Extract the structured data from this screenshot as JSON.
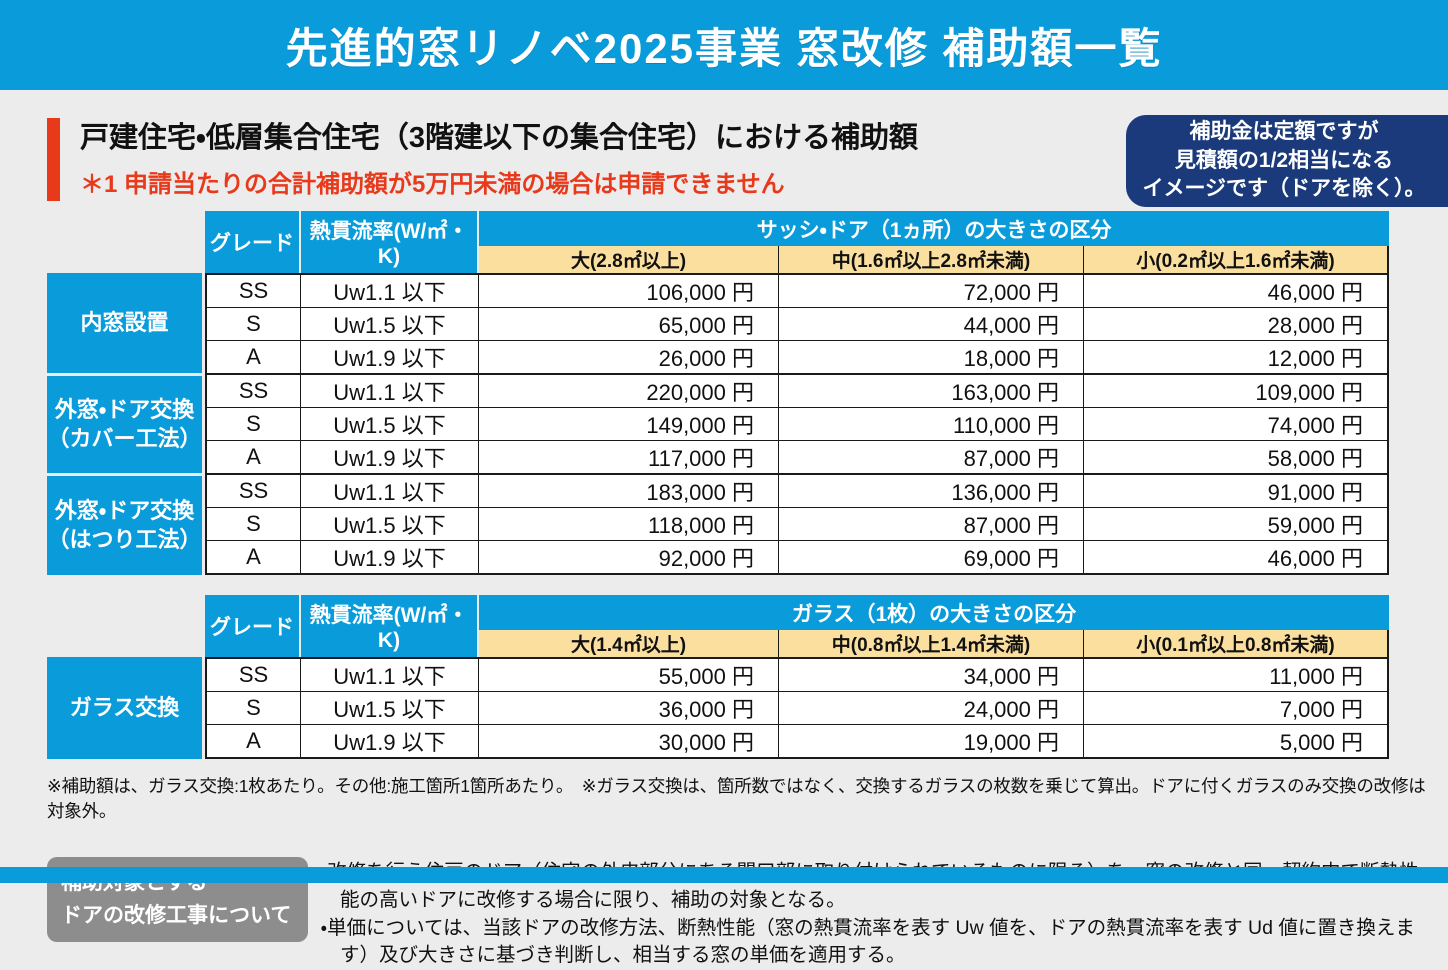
{
  "page_title": "先進的窓リノベ2025事業 窓改修 補助額一覧",
  "section": {
    "heading": "戸建住宅・低層集合住宅（3階建以下の集合住宅）における補助額",
    "note": "＊1 申請当たりの合計補助額が5万円未満の場合は申請できません",
    "badge": "補助金は定額ですが\n見積額の1/2相当になる\nイメージです（ドアを除く）。"
  },
  "colors": {
    "cyan": "#0A9CDA",
    "navy": "#1A3A7C",
    "tan": "#FBDF9E",
    "red": "#E8391B",
    "gray_box": "#8D8D8D"
  },
  "tables": {
    "t1": {
      "col_grade": "グレード",
      "col_uw": "熱貫流率(W/㎡・K)",
      "span_header": "サッシ・ドア（1ヵ所）の大きさの区分",
      "sizes": [
        "大(2.8㎡以上)",
        "中(1.6㎡以上2.8㎡未満)",
        "小(0.2㎡以上1.6㎡未満)"
      ],
      "groups": [
        {
          "label": "内窓設置",
          "rows": [
            {
              "grade": "SS",
              "uw": "Uw1.1 以下",
              "large": "106,000 円",
              "mid": "72,000 円",
              "small": "46,000 円"
            },
            {
              "grade": "S",
              "uw": "Uw1.5 以下",
              "large": "65,000 円",
              "mid": "44,000 円",
              "small": "28,000 円"
            },
            {
              "grade": "A",
              "uw": "Uw1.9 以下",
              "large": "26,000 円",
              "mid": "18,000 円",
              "small": "12,000 円"
            }
          ]
        },
        {
          "label": "外窓・ドア交換\n（カバー工法）",
          "rows": [
            {
              "grade": "SS",
              "uw": "Uw1.1 以下",
              "large": "220,000 円",
              "mid": "163,000 円",
              "small": "109,000 円"
            },
            {
              "grade": "S",
              "uw": "Uw1.5 以下",
              "large": "149,000 円",
              "mid": "110,000 円",
              "small": "74,000 円"
            },
            {
              "grade": "A",
              "uw": "Uw1.9 以下",
              "large": "117,000 円",
              "mid": "87,000 円",
              "small": "58,000 円"
            }
          ]
        },
        {
          "label": "外窓・ドア交換\n（はつり工法）",
          "rows": [
            {
              "grade": "SS",
              "uw": "Uw1.1 以下",
              "large": "183,000 円",
              "mid": "136,000 円",
              "small": "91,000 円"
            },
            {
              "grade": "S",
              "uw": "Uw1.5 以下",
              "large": "118,000 円",
              "mid": "87,000 円",
              "small": "59,000 円"
            },
            {
              "grade": "A",
              "uw": "Uw1.9 以下",
              "large": "92,000 円",
              "mid": "69,000 円",
              "small": "46,000 円"
            }
          ]
        }
      ]
    },
    "t2": {
      "col_grade": "グレード",
      "col_uw": "熱貫流率(W/㎡・K)",
      "span_header": "ガラス（1枚）の大きさの区分",
      "sizes": [
        "大(1.4㎡以上)",
        "中(0.8㎡以上1.4㎡未満)",
        "小(0.1㎡以上0.8㎡未満)"
      ],
      "groups": [
        {
          "label": "ガラス交換",
          "rows": [
            {
              "grade": "SS",
              "uw": "Uw1.1 以下",
              "large": "55,000 円",
              "mid": "34,000 円",
              "small": "11,000 円"
            },
            {
              "grade": "S",
              "uw": "Uw1.5 以下",
              "large": "36,000 円",
              "mid": "24,000 円",
              "small": "7,000 円"
            },
            {
              "grade": "A",
              "uw": "Uw1.9 以下",
              "large": "30,000 円",
              "mid": "19,000 円",
              "small": "5,000 円"
            }
          ]
        }
      ]
    }
  },
  "footnote": "※補助額は、ガラス交換:1枚あたり。その他:施工箇所1箇所あたり。　※ガラス交換は、箇所数ではなく、交換するガラスの枚数を乗じて算出。ドアに付くガラスのみ交換の改修は対象外。",
  "door_section": {
    "box_label": "補助対象とする\nドアの改修工事について",
    "bullet1": "・改修を行う住戸のドア（住宅の外皮部分にある開口部に取り付けられているものに限る）を、窓の改修と同一契約内で断熱性能の高いドアに改修する場合に限り、補助の対象となる。",
    "bullet2": "・単価については、当該ドアの改修方法、断熱性能（窓の熱貫流率を表す Uw 値を、ドアの熱貫流率を表す Ud 値に置き換えます）及び大きさに基づき判断し、相当する窓の単価を適用する。"
  }
}
